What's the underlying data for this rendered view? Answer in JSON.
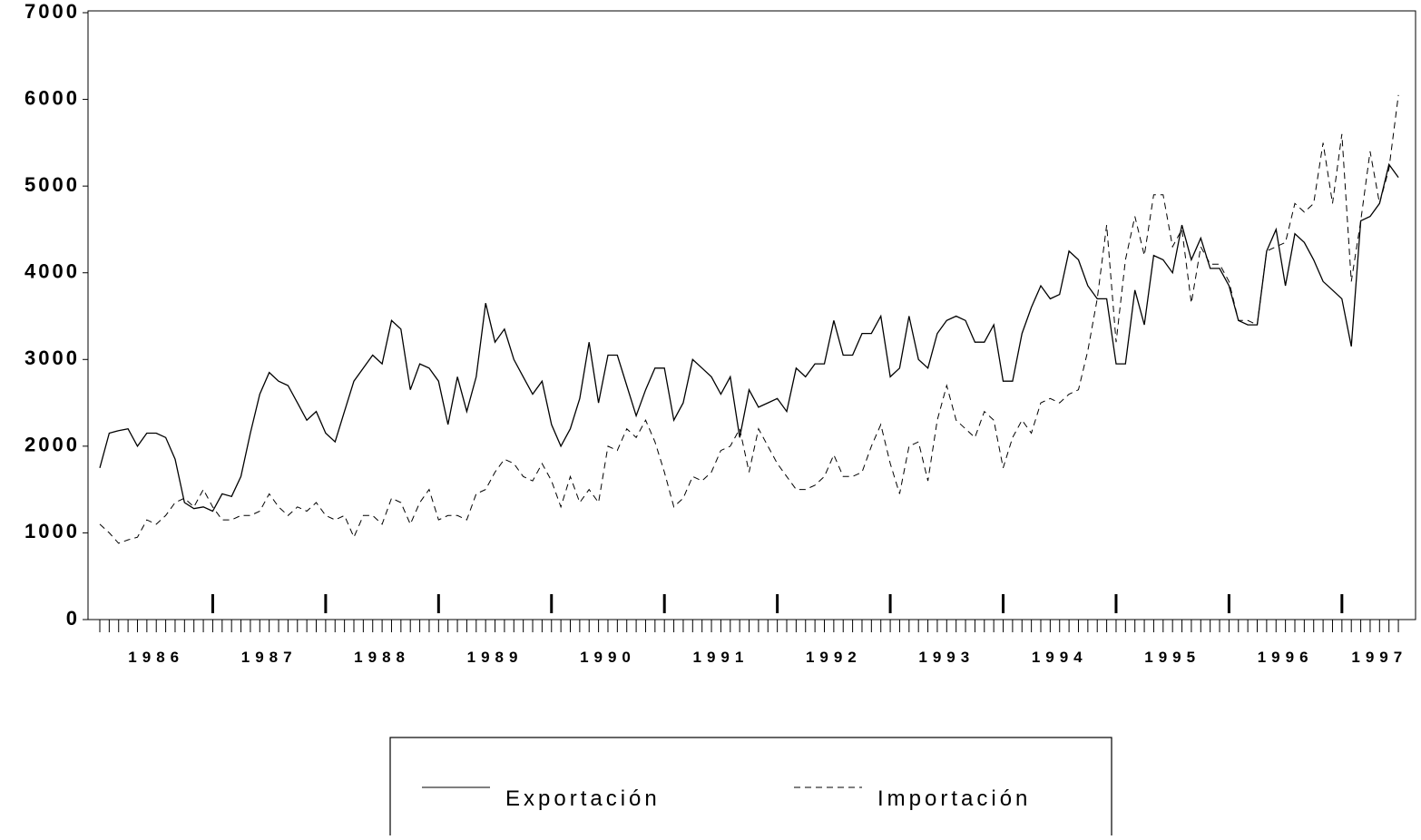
{
  "chart_data": {
    "type": "line",
    "categories": [
      null,
      null,
      null,
      null,
      null,
      null,
      "1986",
      null,
      null,
      null,
      null,
      null,
      null,
      null,
      null,
      null,
      null,
      null,
      "1987",
      null,
      null,
      null,
      null,
      null,
      null,
      null,
      null,
      null,
      null,
      null,
      "1988",
      null,
      null,
      null,
      null,
      null,
      null,
      null,
      null,
      null,
      null,
      null,
      "1989",
      null,
      null,
      null,
      null,
      null,
      null,
      null,
      null,
      null,
      null,
      null,
      "1990",
      null,
      null,
      null,
      null,
      null,
      null,
      null,
      null,
      null,
      null,
      null,
      "1991",
      null,
      null,
      null,
      null,
      null,
      null,
      null,
      null,
      null,
      null,
      null,
      "1992",
      null,
      null,
      null,
      null,
      null,
      null,
      null,
      null,
      null,
      null,
      null,
      "1993",
      null,
      null,
      null,
      null,
      null,
      null,
      null,
      null,
      null,
      null,
      null,
      "1994",
      null,
      null,
      null,
      null,
      null,
      null,
      null,
      null,
      null,
      null,
      null,
      "1995",
      null,
      null,
      null,
      null,
      null,
      null,
      null,
      null,
      null,
      null,
      null,
      "1996",
      null,
      null,
      null,
      null,
      null,
      null,
      null,
      null,
      null,
      "1997",
      null,
      null
    ],
    "series": [
      {
        "name": "Exportación",
        "color": "#000000",
        "style": "solid",
        "values": [
          1750,
          2150,
          2180,
          2200,
          2000,
          2150,
          2150,
          2100,
          1850,
          1350,
          1280,
          1300,
          1250,
          1450,
          1420,
          1650,
          2150,
          2600,
          2850,
          2750,
          2700,
          2500,
          2300,
          2400,
          2150,
          2050,
          2400,
          2750,
          2900,
          3050,
          2950,
          3450,
          3350,
          2650,
          2950,
          2900,
          2750,
          2250,
          2800,
          2400,
          2800,
          3650,
          3200,
          3350,
          3000,
          2800,
          2600,
          2750,
          2250,
          2000,
          2200,
          2550,
          3200,
          2500,
          3050,
          3050,
          2700,
          2350,
          2650,
          2900,
          2900,
          2300,
          2500,
          3000,
          2900,
          2800,
          2600,
          2800,
          2100,
          2650,
          2450,
          2500,
          2550,
          2400,
          2900,
          2800,
          2950,
          2950,
          3450,
          3050,
          3050,
          3300,
          3300,
          3500,
          2800,
          2900,
          3500,
          3000,
          2900,
          3300,
          3450,
          3500,
          3450,
          3200,
          3200,
          3400,
          2750,
          2750,
          3300,
          3600,
          3850,
          3700,
          3750,
          4250,
          4150,
          3850,
          3700,
          3700,
          2950,
          2950,
          3800,
          3400,
          4200,
          4150,
          4000,
          4550,
          4150,
          4400,
          4050,
          4050,
          3850,
          3450,
          3400,
          3400,
          4250,
          4500,
          3850,
          4450,
          4350,
          4150,
          3900,
          3800,
          3700,
          3150,
          4600,
          4650,
          4800,
          5250,
          5100
        ]
      },
      {
        "name": "Importación",
        "color": "#000000",
        "style": "dashed",
        "values": [
          1100,
          1000,
          880,
          920,
          950,
          1150,
          1100,
          1200,
          1350,
          1400,
          1300,
          1500,
          1300,
          1150,
          1150,
          1200,
          1200,
          1250,
          1450,
          1300,
          1200,
          1300,
          1250,
          1350,
          1200,
          1150,
          1200,
          950,
          1200,
          1200,
          1100,
          1400,
          1350,
          1100,
          1350,
          1500,
          1150,
          1200,
          1200,
          1150,
          1450,
          1500,
          1700,
          1850,
          1800,
          1650,
          1600,
          1800,
          1600,
          1300,
          1650,
          1350,
          1500,
          1350,
          2000,
          1950,
          2200,
          2100,
          2300,
          2050,
          1700,
          1300,
          1400,
          1650,
          1600,
          1700,
          1950,
          2000,
          2200,
          1700,
          2200,
          2000,
          1800,
          1650,
          1500,
          1500,
          1550,
          1650,
          1900,
          1650,
          1650,
          1700,
          2000,
          2250,
          1800,
          1450,
          2000,
          2050,
          1600,
          2300,
          2700,
          2300,
          2200,
          2100,
          2400,
          2300,
          1750,
          2100,
          2300,
          2150,
          2500,
          2550,
          2500,
          2600,
          2650,
          3100,
          3700,
          4550,
          3200,
          4150,
          4650,
          4200,
          4900,
          4900,
          4300,
          4500,
          3650,
          4300,
          4100,
          4100,
          3900,
          3450,
          3450,
          3400,
          4250,
          4300,
          4350,
          4800,
          4700,
          4800,
          5500,
          4800,
          5600,
          3900,
          4600,
          5400,
          4800,
          5200,
          6050
        ]
      }
    ],
    "ylim": [
      0,
      7000
    ],
    "yticks": [
      0,
      1000,
      2000,
      3000,
      4000,
      5000,
      6000,
      7000
    ],
    "grid": false,
    "legend": "bottom"
  }
}
